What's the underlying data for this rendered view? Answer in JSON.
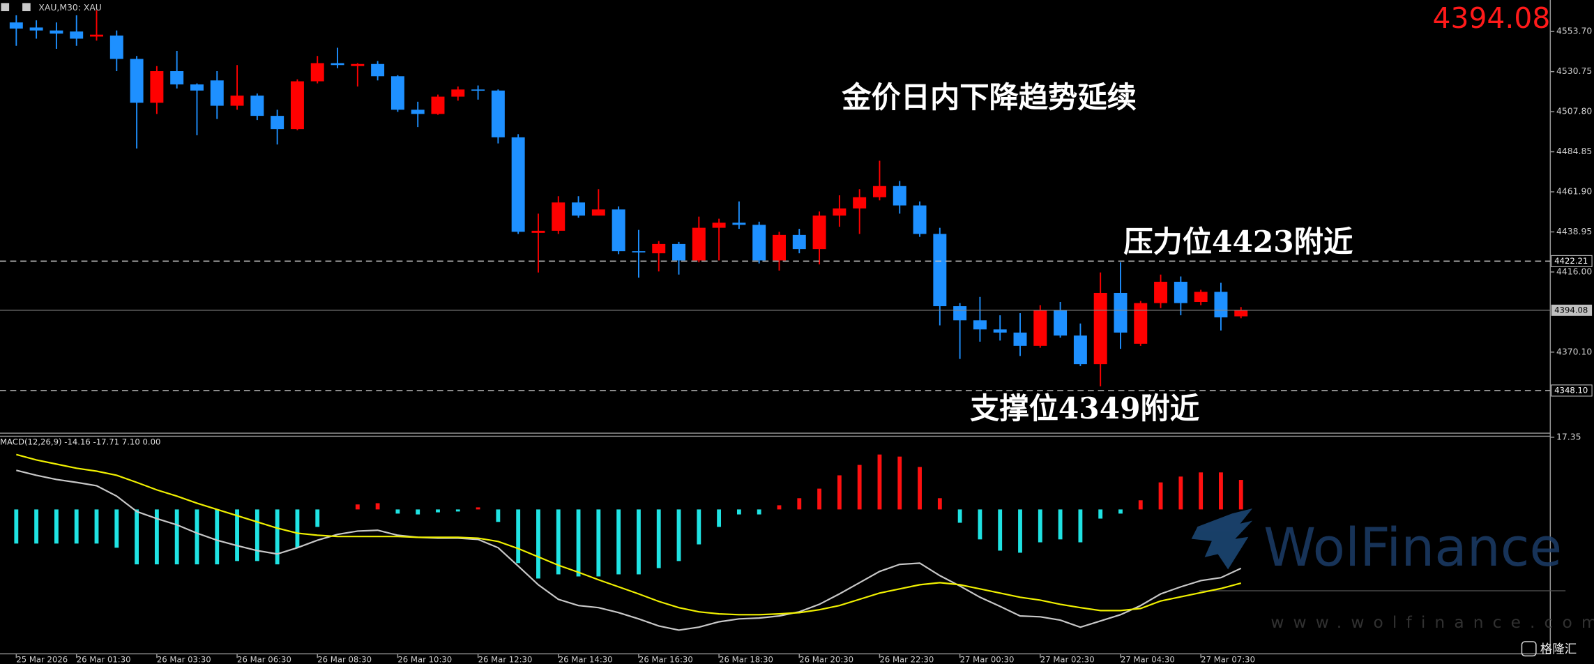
{
  "symbol": "XAU,M30: XAU",
  "watermark": {
    "brand": "WolFinance",
    "url": "www.wolfinance.com"
  },
  "source_logo": "格隆汇",
  "chart_data": [
    {
      "type": "candlestick",
      "title": "金价日内下降趋势延续",
      "annotations": [
        "压力位4423附近",
        "支撑位4349附近"
      ],
      "categories": [
        "25 Mar 2026",
        null,
        null,
        "26 Mar 01:30",
        null,
        null,
        null,
        "26 Mar 03:30",
        null,
        null,
        null,
        "26 Mar 06:30",
        null,
        null,
        null,
        "26 Mar 08:30",
        null,
        null,
        null,
        "26 Mar 10:30",
        null,
        null,
        null,
        "26 Mar 12:30",
        null,
        null,
        null,
        "26 Mar 14:30",
        null,
        null,
        null,
        "26 Mar 16:30",
        null,
        null,
        null,
        "26 Mar 18:30",
        null,
        null,
        null,
        "26 Mar 20:30",
        null,
        null,
        null,
        "26 Mar 22:30",
        null,
        null,
        null,
        "27 Mar 00:30",
        null,
        null,
        null,
        "27 Mar 02:30",
        null,
        null,
        null,
        "27 Mar 04:30",
        null,
        null,
        null,
        "27 Mar 07:30",
        null,
        null
      ],
      "open": [
        4558.9,
        4556.0,
        4554.3,
        4553.7,
        4550.8,
        4551.4,
        4538.0,
        4512.9,
        4531.0,
        4523.4,
        4525.7,
        4511.2,
        4517.0,
        4505.4,
        4497.8,
        4525.2,
        4535.6,
        4533.9,
        4535.1,
        4528.1,
        4508.9,
        4506.5,
        4516.4,
        4520.5,
        4519.9,
        4493.1,
        4438.4,
        4439.6,
        4455.8,
        4448.3,
        4451.8,
        4427.9,
        4426.7,
        4432.0,
        4422.6,
        4441.3,
        4444.2,
        4443.0,
        4422.6,
        4437.2,
        4429.1,
        4448.3,
        4452.4,
        4458.8,
        4465.2,
        4454.1,
        4437.8,
        4396.4,
        4388.3,
        4383.1,
        4381.3,
        4373.7,
        4394.1,
        4379.6,
        4363.2,
        4404.0,
        4374.9,
        4398.2,
        4410.4,
        4398.8,
        4404.6,
        4390.6
      ],
      "high": [
        4563.0,
        4560.1,
        4558.9,
        4563.0,
        4565.9,
        4554.3,
        4539.7,
        4533.9,
        4542.6,
        4524.0,
        4531.0,
        4534.5,
        4518.2,
        4508.9,
        4526.3,
        4539.7,
        4544.4,
        4535.6,
        4536.8,
        4528.7,
        4513.5,
        4517.6,
        4522.2,
        4522.8,
        4520.5,
        4494.9,
        4449.4,
        4459.4,
        4459.4,
        4463.4,
        4453.5,
        4440.1,
        4433.7,
        4433.2,
        4447.7,
        4446.5,
        4456.4,
        4444.8,
        4439.0,
        4440.7,
        4450.6,
        4459.9,
        4463.4,
        4479.7,
        4468.1,
        4456.4,
        4441.3,
        4398.2,
        4401.7,
        4391.2,
        4392.4,
        4397.0,
        4398.8,
        4386.5,
        4415.7,
        4421.5,
        4399.4,
        4414.5,
        4413.4,
        4405.8,
        4409.8,
        4395.9
      ],
      "low": [
        4545.5,
        4549.6,
        4543.8,
        4545.5,
        4548.5,
        4531.0,
        4486.7,
        4506.5,
        4521.1,
        4494.3,
        4503.6,
        4508.9,
        4503.0,
        4489.0,
        4497.2,
        4524.0,
        4532.7,
        4522.2,
        4525.7,
        4507.7,
        4499.0,
        4506.0,
        4514.1,
        4514.7,
        4489.6,
        4437.8,
        4415.7,
        4437.8,
        4447.1,
        4448.3,
        4426.2,
        4412.8,
        4416.3,
        4414.5,
        4421.5,
        4422.6,
        4440.7,
        4420.9,
        4416.8,
        4426.7,
        4420.3,
        4441.9,
        4437.8,
        4457.0,
        4449.4,
        4436.1,
        4385.4,
        4366.2,
        4376.1,
        4376.7,
        4367.9,
        4372.6,
        4378.4,
        4362.1,
        4350.5,
        4372.0,
        4373.7,
        4395.3,
        4391.2,
        4397.0,
        4382.5,
        4389.5
      ],
      "close": [
        4555.4,
        4554.3,
        4552.5,
        4549.6,
        4551.9,
        4538.0,
        4512.9,
        4531.0,
        4523.4,
        4519.9,
        4511.2,
        4517.0,
        4505.4,
        4497.8,
        4525.2,
        4535.6,
        4534.5,
        4535.1,
        4528.1,
        4508.9,
        4506.5,
        4516.4,
        4520.5,
        4519.9,
        4493.1,
        4439.0,
        4439.6,
        4455.8,
        4448.3,
        4451.8,
        4427.9,
        4427.3,
        4432.0,
        4422.6,
        4441.3,
        4444.2,
        4443.0,
        4422.6,
        4437.2,
        4429.1,
        4448.3,
        4452.4,
        4458.8,
        4465.2,
        4454.1,
        4437.8,
        4396.4,
        4388.3,
        4383.1,
        4381.3,
        4373.7,
        4394.1,
        4379.6,
        4363.2,
        4404.0,
        4381.3,
        4398.2,
        4410.4,
        4398.2,
        4404.6,
        4390.0,
        4394.08
      ],
      "up_color": "#ff0000",
      "down_color": "#1e90ff",
      "ylim": [
        4323.1,
        4571.75
      ],
      "yticks": [
        {
          "value": 4553.7,
          "label": "4553.70"
        },
        {
          "value": 4530.75,
          "label": "4530.75"
        },
        {
          "value": 4507.8,
          "label": "4507.80"
        },
        {
          "value": 4484.85,
          "label": "4484.85"
        },
        {
          "value": 4461.9,
          "label": "4461.90"
        },
        {
          "value": 4438.95,
          "label": "4438.95"
        },
        {
          "value": 4416.0,
          "label": "4416.00"
        },
        {
          "value": 4370.1,
          "label": "4370.10"
        }
      ],
      "levels": [
        {
          "value": 4422.21,
          "label": "4422.21"
        },
        {
          "value": 4348.1,
          "label": "4348.10"
        }
      ],
      "last_price": {
        "value": 4394.08,
        "label": "4394.08"
      }
    },
    {
      "type": "macd",
      "title": "MACD(12,26,9) -14.16 -17.71 7.10 0.00",
      "ylim": [
        -34.7,
        17.35
      ],
      "yticks": [
        17.35
      ],
      "histogram_values": [
        -8.2,
        -8.2,
        -8.2,
        -8.2,
        -8.2,
        -9.2,
        -13.2,
        -13.2,
        -13.2,
        -13.2,
        -13.2,
        -12.4,
        -12.4,
        -13.2,
        -9.2,
        -4.2,
        0,
        1.2,
        1.5,
        -1.0,
        -1.2,
        -0.7,
        -0.5,
        0.5,
        -3.0,
        -12.9,
        -16.6,
        -15.6,
        -16.1,
        -16.1,
        -15.6,
        -15.6,
        -14.1,
        -12.4,
        -8.4,
        -4.2,
        -1.2,
        -1.2,
        1.0,
        2.7,
        5.0,
        8.2,
        10.7,
        13.2,
        12.7,
        10.2,
        2.7,
        -3.2,
        -7.2,
        -9.9,
        -10.4,
        -7.9,
        -7.2,
        -7.9,
        -2.2,
        -1.0,
        2.2,
        6.5,
        7.9,
        8.9,
        8.9,
        7.1
      ],
      "histogram_up_color": "#ff1010",
      "histogram_down_color": "#1fe3e3",
      "series": [
        {
          "color": "#c8c8c8",
          "values": [
            9.4,
            8.2,
            7.2,
            6.5,
            5.7,
            3.2,
            -0.5,
            -2.2,
            -3.7,
            -5.7,
            -7.4,
            -8.7,
            -9.9,
            -10.7,
            -9.2,
            -7.4,
            -6.0,
            -5.2,
            -5.0,
            -6.2,
            -6.7,
            -6.9,
            -6.9,
            -7.2,
            -9.2,
            -13.6,
            -18.1,
            -21.6,
            -23.1,
            -23.6,
            -24.8,
            -26.3,
            -28.0,
            -29.0,
            -28.3,
            -27.0,
            -26.3,
            -26.1,
            -25.6,
            -24.6,
            -22.8,
            -20.3,
            -17.6,
            -14.9,
            -13.2,
            -12.9,
            -15.9,
            -18.4,
            -21.1,
            -23.3,
            -25.6,
            -25.8,
            -26.6,
            -28.3,
            -26.8,
            -25.3,
            -23.1,
            -20.3,
            -18.6,
            -17.1,
            -16.4,
            -14.16
          ]
        },
        {
          "color": "#f0f000",
          "values": [
            13.2,
            11.9,
            10.9,
            9.9,
            9.2,
            8.2,
            6.5,
            4.7,
            3.2,
            1.5,
            0,
            -1.5,
            -3.0,
            -4.5,
            -5.7,
            -6.2,
            -6.5,
            -6.5,
            -6.5,
            -6.5,
            -6.7,
            -6.7,
            -6.7,
            -6.9,
            -7.7,
            -9.4,
            -11.4,
            -13.4,
            -15.1,
            -16.9,
            -18.6,
            -20.3,
            -22.1,
            -23.6,
            -24.6,
            -25.1,
            -25.3,
            -25.3,
            -25.1,
            -24.8,
            -24.1,
            -23.1,
            -21.6,
            -20.1,
            -19.1,
            -18.1,
            -17.6,
            -18.1,
            -19.1,
            -20.1,
            -21.1,
            -21.8,
            -22.8,
            -23.6,
            -24.3,
            -24.3,
            -23.8,
            -22.0,
            -21.0,
            -20.0,
            -19.0,
            -17.71
          ]
        }
      ]
    }
  ]
}
